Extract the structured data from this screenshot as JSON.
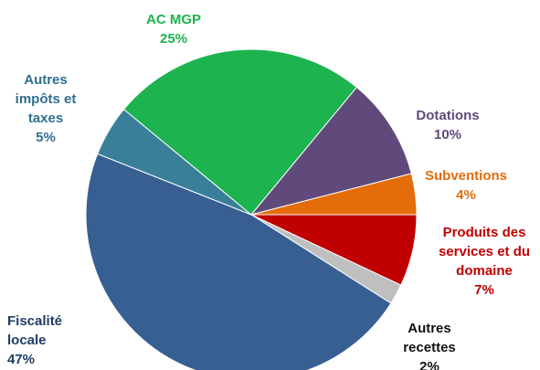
{
  "chart_data": {
    "type": "pie",
    "categories": [
      "Produits des services et du domaine",
      "Autres recettes",
      "Fiscalité locale",
      "Autres impôts et taxes",
      "AC MGP",
      "Dotations",
      "Subventions"
    ],
    "values": [
      7,
      2,
      47,
      5,
      25,
      10,
      4
    ],
    "value_labels": [
      "7%",
      "2%",
      "47%",
      "5%",
      "25%",
      "10%",
      "4%"
    ],
    "colors": [
      "#c00000",
      "#bfbfbf",
      "#375f92",
      "#3a7f99",
      "#1db34f",
      "#604a7b",
      "#e46c0a"
    ]
  }
}
